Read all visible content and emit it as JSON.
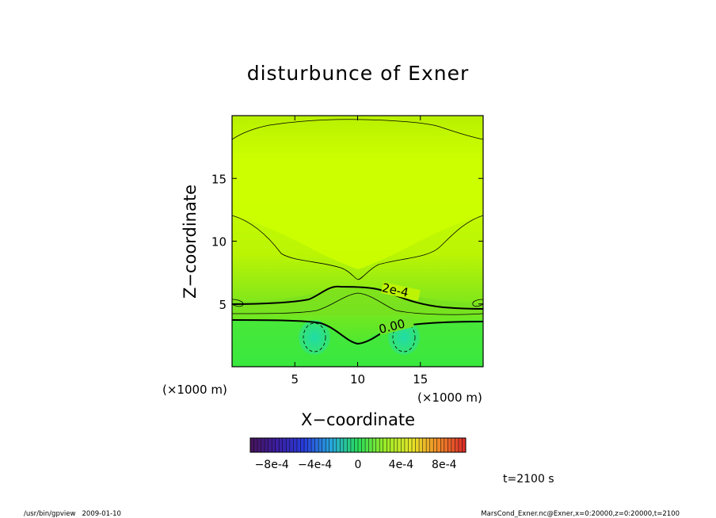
{
  "chart_data": {
    "type": "heatmap",
    "title": "disturbunce of Exner",
    "xlabel": "X−coordinate",
    "ylabel": "Z−coordinate",
    "x_unit": "(×1000 m)",
    "z_unit": "(×1000 m)",
    "xlim": [
      0,
      20
    ],
    "ylim": [
      0,
      20
    ],
    "x_ticks": [
      5,
      10,
      15
    ],
    "y_ticks": [
      5,
      10,
      15
    ],
    "x_tick_labels": [
      "5",
      "10",
      "15"
    ],
    "y_tick_labels": [
      "5",
      "10",
      "15"
    ],
    "contour_labels": [
      "2e-4",
      "0.00"
    ],
    "colorbar": {
      "range": [
        -0.001,
        0.001
      ],
      "tick_labels": [
        "−8e-4",
        "−4e-4",
        "0",
        "4e-4",
        "8e-4"
      ]
    },
    "colors": {
      "upper_field": "#ccff00",
      "mid_field": "#99ee11",
      "lower_field": "#33ee33",
      "negative_blob": "#22ddaa"
    },
    "grid": false,
    "legend": "colorbar below plot"
  },
  "annotations": {
    "time": "t=2100 s",
    "footer_left": "/usr/bin/gpview   2009-01-10",
    "footer_right": "MarsCond_Exner.nc@Exner,x=0:20000,z=0:20000,t=2100"
  }
}
